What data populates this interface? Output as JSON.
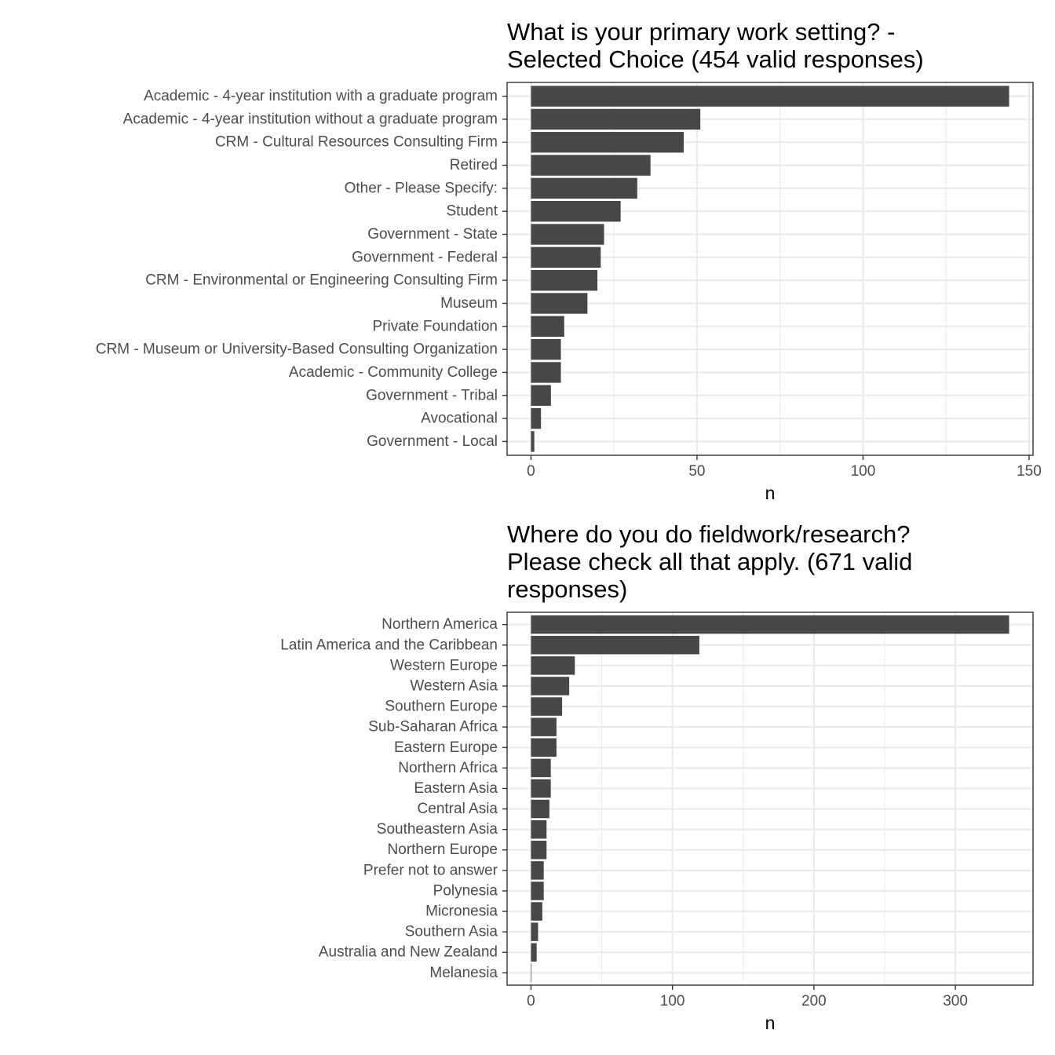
{
  "chart_data": [
    {
      "type": "bar",
      "orientation": "horizontal",
      "title": "What is your primary work setting? -\nSelected Choice (454 valid responses)",
      "xlabel": "n",
      "ylabel": "",
      "categories": [
        "Academic - 4-year institution with a graduate program",
        "Academic - 4-year institution without a graduate program",
        "CRM - Cultural Resources Consulting Firm",
        "Retired",
        "Other - Please Specify:",
        "Student",
        "Government - State",
        "Government - Federal",
        "CRM - Environmental or Engineering Consulting Firm",
        "Museum",
        "Private Foundation",
        "CRM - Museum or University-Based Consulting Organization",
        "Academic - Community College",
        "Government - Tribal",
        "Avocational",
        "Government - Local"
      ],
      "values": [
        144,
        51,
        46,
        36,
        32,
        27,
        22,
        21,
        20,
        17,
        10,
        9,
        9,
        6,
        3,
        1
      ],
      "xlim": [
        -7.2,
        151.2
      ],
      "ticks": [
        0,
        50,
        100,
        150
      ],
      "tick_labels": [
        "0",
        "50",
        "100",
        "150"
      ],
      "grid": true,
      "bar_color": "#474747"
    },
    {
      "type": "bar",
      "orientation": "horizontal",
      "title": "Where do you do fieldwork/research?\nPlease check all that apply. (671 valid\nresponses)",
      "xlabel": "n",
      "ylabel": "",
      "categories": [
        "Northern America",
        "Latin America and the Caribbean",
        "Western Europe",
        "Western Asia",
        "Southern Europe",
        "Sub-Saharan Africa",
        "Eastern Europe",
        "Northern Africa",
        "Eastern Asia",
        "Central Asia",
        "Southeastern Asia",
        "Northern Europe",
        "Prefer not to answer",
        "Polynesia",
        "Micronesia",
        "Southern Asia",
        "Australia and New Zealand",
        "Melanesia"
      ],
      "values": [
        338,
        119,
        31,
        27,
        22,
        18,
        18,
        14,
        14,
        13,
        11,
        11,
        9,
        9,
        8,
        5,
        4,
        0.3
      ],
      "xlim": [
        -16.9,
        354.9
      ],
      "ticks": [
        0,
        100,
        200,
        300
      ],
      "tick_labels": [
        "0",
        "100",
        "200",
        "300"
      ],
      "grid": true,
      "bar_color": "#474747"
    }
  ]
}
